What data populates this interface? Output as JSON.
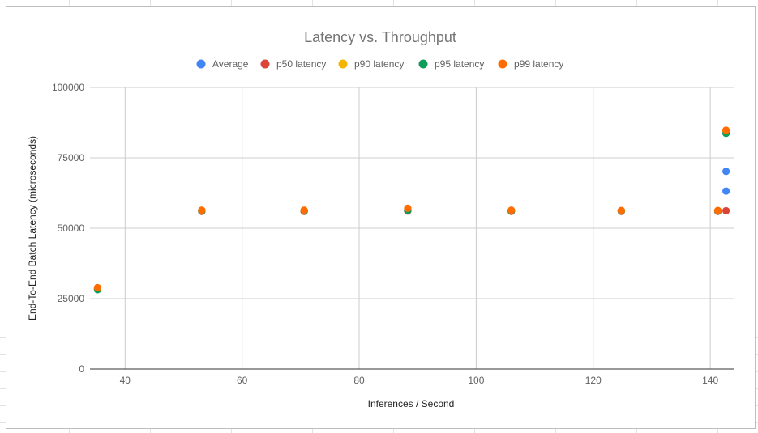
{
  "chart_data": {
    "type": "scatter",
    "title": "Latency vs. Throughput",
    "xlabel": "Inferences / Second",
    "ylabel": "End-To-End Batch Latency (microseconds)",
    "xlim": [
      34,
      144
    ],
    "ylim": [
      0,
      100000
    ],
    "xticks": [
      "40",
      "60",
      "80",
      "100",
      "120",
      "140"
    ],
    "yticks": [
      "0",
      "25000",
      "50000",
      "75000",
      "100000"
    ],
    "xtick_values": [
      40,
      60,
      80,
      100,
      120,
      140
    ],
    "ytick_values": [
      0,
      25000,
      50000,
      75000,
      100000
    ],
    "grid": true,
    "legend_position": "top",
    "series": [
      {
        "name": "Average",
        "color": "#4285f4",
        "points": [
          [
            35.3,
            28500
          ],
          [
            53.1,
            56100
          ],
          [
            70.6,
            56100
          ],
          [
            88.3,
            56200
          ],
          [
            106.0,
            56100
          ],
          [
            124.8,
            56100
          ],
          [
            141.3,
            56100
          ],
          [
            142.7,
            63200
          ],
          [
            142.7,
            70200
          ]
        ]
      },
      {
        "name": "p50 latency",
        "color": "#db4437",
        "points": [
          [
            35.3,
            28400
          ],
          [
            53.1,
            56000
          ],
          [
            70.6,
            56000
          ],
          [
            88.3,
            56100
          ],
          [
            106.0,
            56000
          ],
          [
            124.8,
            56000
          ],
          [
            141.3,
            56000
          ],
          [
            142.7,
            56200
          ]
        ]
      },
      {
        "name": "p90 latency",
        "color": "#f4b400",
        "points": [
          [
            35.3,
            28700
          ],
          [
            53.1,
            56300
          ],
          [
            70.6,
            56300
          ],
          [
            88.3,
            56700
          ],
          [
            106.0,
            56300
          ],
          [
            124.8,
            56200
          ],
          [
            141.3,
            56200
          ],
          [
            142.7,
            84300
          ]
        ]
      },
      {
        "name": "p95 latency",
        "color": "#0f9d58",
        "points": [
          [
            35.3,
            28200
          ],
          [
            53.1,
            56100
          ],
          [
            70.6,
            56100
          ],
          [
            88.3,
            56300
          ],
          [
            106.0,
            56100
          ],
          [
            124.8,
            56100
          ],
          [
            141.3,
            56100
          ],
          [
            142.7,
            83700
          ]
        ]
      },
      {
        "name": "p99 latency",
        "color": "#ff6d01",
        "points": [
          [
            35.3,
            28900
          ],
          [
            53.1,
            56400
          ],
          [
            70.6,
            56400
          ],
          [
            88.3,
            57100
          ],
          [
            106.0,
            56400
          ],
          [
            124.8,
            56300
          ],
          [
            141.3,
            56300
          ],
          [
            142.7,
            84800
          ]
        ]
      }
    ]
  }
}
